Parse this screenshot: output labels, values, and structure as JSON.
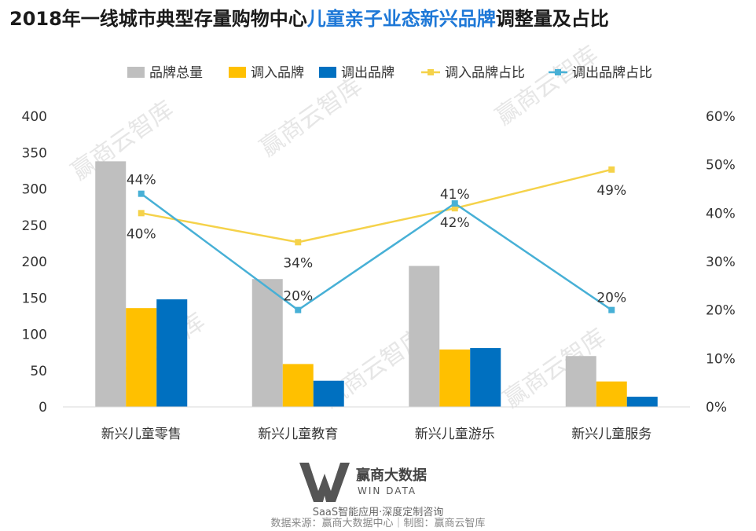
{
  "title": {
    "part1": "2018年一线城市典型存量购物中心",
    "part2": "儿童亲子业态新兴品牌",
    "part3": "调整量及占比"
  },
  "colors": {
    "total": "#bfbfbf",
    "in": "#ffc000",
    "out": "#0070c0",
    "in_ratio": "#f5d24a",
    "out_ratio": "#47b0d6",
    "title_highlight": "#1e78d7"
  },
  "chart_data": {
    "type": "bar",
    "categories": [
      "新兴儿童零售",
      "新兴儿童教育",
      "新兴儿童游乐",
      "新兴儿童服务"
    ],
    "series": [
      {
        "name": "品牌总量",
        "kind": "bar",
        "axis": "left",
        "values": [
          338,
          176,
          194,
          70
        ]
      },
      {
        "name": "调入品牌",
        "kind": "bar",
        "axis": "left",
        "values": [
          136,
          59,
          79,
          35
        ]
      },
      {
        "name": "调出品牌",
        "kind": "bar",
        "axis": "left",
        "values": [
          148,
          36,
          81,
          14
        ]
      },
      {
        "name": "调入品牌占比",
        "kind": "line",
        "axis": "right",
        "values": [
          0.4,
          0.34,
          0.41,
          0.49
        ],
        "labels": [
          "40%",
          "34%",
          "41%",
          "49%"
        ]
      },
      {
        "name": "调出品牌占比",
        "kind": "line",
        "axis": "right",
        "values": [
          0.44,
          0.2,
          0.42,
          0.2
        ],
        "labels": [
          "44%",
          "20%",
          "42%",
          "20%"
        ]
      }
    ],
    "ylim": [
      0,
      400
    ],
    "yticks": [
      "0",
      "50",
      "100",
      "150",
      "200",
      "250",
      "300",
      "350",
      "400"
    ],
    "y2lim": [
      0,
      0.6
    ],
    "y2ticks": [
      "0%",
      "10%",
      "20%",
      "30%",
      "40%",
      "50%",
      "60%"
    ],
    "legend_position": "top"
  },
  "watermark": "赢商云智库",
  "brand": {
    "name": "赢商大数据",
    "sub": "WIN DATA",
    "tagline": "SaaS智能应用·深度定制咨询"
  },
  "source": "数据来源：赢商大数据中心｜制图：赢商云智库"
}
